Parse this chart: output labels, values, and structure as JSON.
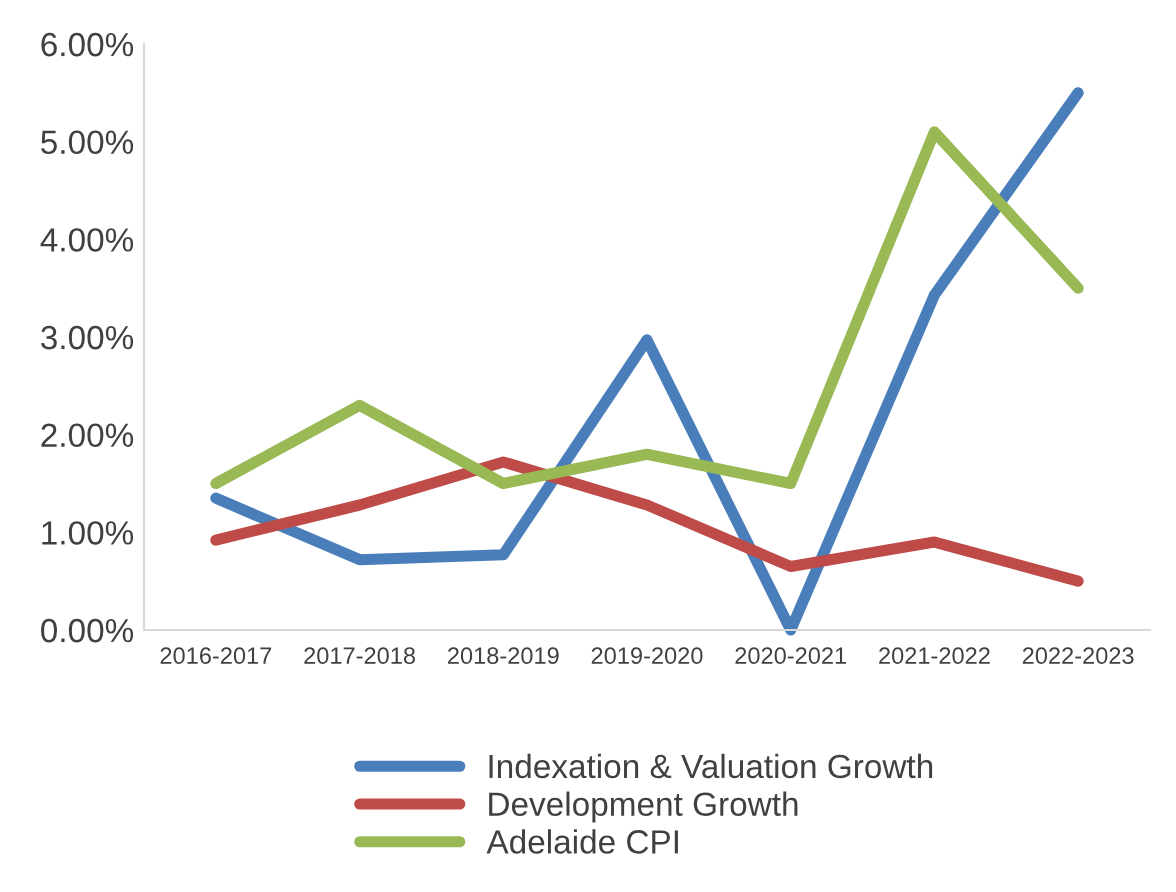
{
  "chart_data": {
    "type": "line",
    "categories": [
      "2016-2017",
      "2017-2018",
      "2018-2019",
      "2019-2020",
      "2020-2021",
      "2021-2022",
      "2022-2023"
    ],
    "series": [
      {
        "name": "Indexation & Valuation Growth",
        "color": "#4a7ebb",
        "values": [
          1.35,
          0.72,
          0.77,
          2.97,
          0,
          3.43,
          5.5
        ]
      },
      {
        "name": "Development Growth",
        "color": "#be4b48",
        "values": [
          0.92,
          1.28,
          1.72,
          1.28,
          0.65,
          0.9,
          0.5
        ]
      },
      {
        "name": "Adelaide CPI",
        "color": "#98b954",
        "values": [
          1.5,
          2.3,
          1.5,
          1.8,
          1.5,
          5.1,
          3.5
        ]
      }
    ],
    "ylim": [
      0,
      6
    ],
    "yticks": [
      {
        "value": 0,
        "label": "0.00%"
      },
      {
        "value": 1,
        "label": "1.00%"
      },
      {
        "value": 2,
        "label": "2.00%"
      },
      {
        "value": 3,
        "label": "3.00%"
      },
      {
        "value": 4,
        "label": "4.00%"
      },
      {
        "value": 5,
        "label": "5.00%"
      },
      {
        "value": 6,
        "label": "6.00%"
      }
    ],
    "grid": false,
    "legend": "bottom",
    "marker": "none",
    "line_style": "solid"
  }
}
